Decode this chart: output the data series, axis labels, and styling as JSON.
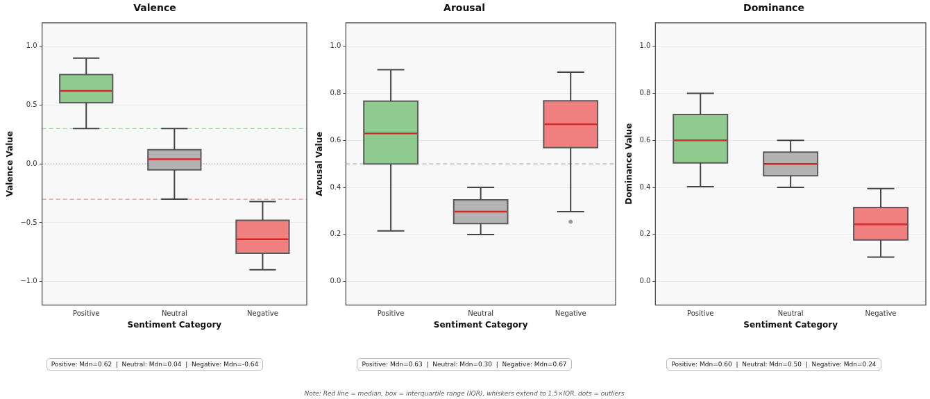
{
  "chart_data": [
    {
      "type": "box",
      "title": "Valence",
      "xlabel": "Sentiment Category",
      "ylabel": "Valence Value",
      "categories": [
        "Positive",
        "Neutral",
        "Negative"
      ],
      "colors": [
        "#90cc90",
        "#b3b3b3",
        "#f08080"
      ],
      "boxes": [
        {
          "low": 0.3,
          "q1": 0.52,
          "median": 0.62,
          "q3": 0.76,
          "high": 0.9
        },
        {
          "low": -0.3,
          "q1": -0.05,
          "median": 0.04,
          "q3": 0.12,
          "high": 0.3
        },
        {
          "low": -0.9,
          "q1": -0.76,
          "median": -0.64,
          "q3": -0.48,
          "high": -0.32
        }
      ],
      "ylim": [
        -1.2,
        1.2
      ],
      "yticks": [
        {
          "value": -1,
          "label": "−1.0"
        },
        {
          "value": -0.5,
          "label": "−0.5"
        },
        {
          "value": 0,
          "label": "0.0"
        },
        {
          "value": 0.5,
          "label": "0.5"
        },
        {
          "value": 1,
          "label": "1.0"
        }
      ],
      "grid": "y",
      "ref_lines": [
        {
          "axis": "y",
          "value": 0.3,
          "label": null,
          "color": "#90d890",
          "line_style": "dashed"
        },
        {
          "axis": "y",
          "value": 0,
          "label": null,
          "color": "#b0b0b0",
          "line_style": "dotted"
        },
        {
          "axis": "y",
          "value": -0.3,
          "label": null,
          "color": "#f09090",
          "line_style": "dashed"
        }
      ],
      "annotations": [
        "Positive: Mdn=0.62  |  Neutral: Mdn=0.04  |  Negative: Mdn=-0.64"
      ]
    },
    {
      "type": "box",
      "title": "Arousal",
      "xlabel": "Sentiment Category",
      "ylabel": "Arousal Value",
      "categories": [
        "Positive",
        "Neutral",
        "Negative"
      ],
      "colors": [
        "#90cc90",
        "#b3b3b3",
        "#f08080"
      ],
      "boxes": [
        {
          "low": 0.215,
          "q1": 0.5,
          "median": 0.63,
          "q3": 0.767,
          "high": 0.9
        },
        {
          "low": 0.2,
          "q1": 0.246,
          "median": 0.297,
          "q3": 0.347,
          "high": 0.4
        },
        {
          "low": 0.297,
          "q1": 0.569,
          "median": 0.669,
          "q3": 0.768,
          "high": 0.89,
          "outliers": [
            0.254
          ]
        }
      ],
      "ylim": [
        -0.1,
        1.1
      ],
      "yticks": [
        {
          "value": 0,
          "label": "0.0"
        },
        {
          "value": 0.2,
          "label": "0.2"
        },
        {
          "value": 0.4,
          "label": "0.4"
        },
        {
          "value": 0.6,
          "label": "0.6"
        },
        {
          "value": 0.8,
          "label": "0.8"
        },
        {
          "value": 1,
          "label": "1.0"
        }
      ],
      "grid": "y",
      "ref_lines": [
        {
          "axis": "y",
          "value": 0.5,
          "label": null,
          "color": "#b0b0b0",
          "line_style": "dashed"
        }
      ],
      "annotations": [
        "Positive: Mdn=0.63  |  Neutral: Mdn=0.30  |  Negative: Mdn=0.67",
        "Note: Red line = median, box = interquartile range (IQR), whiskers extend to 1.5×IQR, dots = outliers"
      ]
    },
    {
      "type": "box",
      "title": "Dominance",
      "xlabel": "Sentiment Category",
      "ylabel": "Dominance Value",
      "categories": [
        "Positive",
        "Neutral",
        "Negative"
      ],
      "colors": [
        "#90cc90",
        "#b3b3b3",
        "#f08080"
      ],
      "boxes": [
        {
          "low": 0.403,
          "q1": 0.504,
          "median": 0.6,
          "q3": 0.71,
          "high": 0.8
        },
        {
          "low": 0.4,
          "q1": 0.45,
          "median": 0.5,
          "q3": 0.55,
          "high": 0.6
        },
        {
          "low": 0.104,
          "q1": 0.177,
          "median": 0.243,
          "q3": 0.315,
          "high": 0.395
        }
      ],
      "ylim": [
        -0.1,
        1.1
      ],
      "yticks": [
        {
          "value": 0,
          "label": "0.0"
        },
        {
          "value": 0.2,
          "label": "0.2"
        },
        {
          "value": 0.4,
          "label": "0.4"
        },
        {
          "value": 0.6,
          "label": "0.6"
        },
        {
          "value": 0.8,
          "label": "0.8"
        },
        {
          "value": 1,
          "label": "1.0"
        }
      ],
      "grid": "y",
      "annotations": [
        "Positive: Mdn=0.60  |  Neutral: Mdn=0.50  |  Negative: Mdn=0.24"
      ]
    }
  ]
}
